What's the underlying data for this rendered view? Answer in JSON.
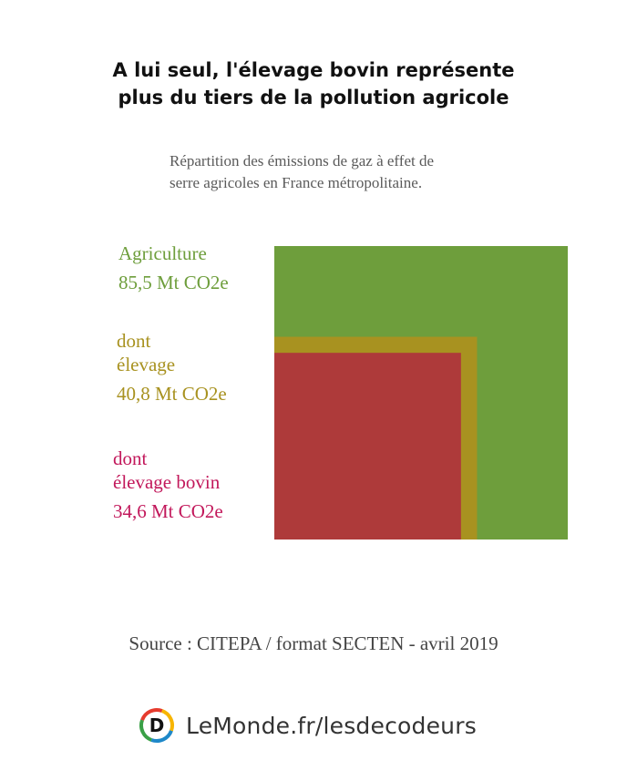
{
  "title": {
    "line1": "A lui seul, l'élevage bovin représente",
    "line2": "plus du tiers de la pollution agricole"
  },
  "subtitle": {
    "line1": "Répartition des émissions de gaz à effet de",
    "line2": "serre agricoles en France métropolitaine."
  },
  "chart_data": {
    "type": "area",
    "unit": "Mt CO2e",
    "series": [
      {
        "name_line1": "Agriculture",
        "name_line2": "",
        "value": 85.5,
        "value_label": "85,5 Mt CO2e",
        "color": "#6e9e3c",
        "label_color": "#6e9e3c"
      },
      {
        "name_line1": "dont",
        "name_line2": "élevage",
        "value": 40.8,
        "value_label": "40,8 Mt CO2e",
        "color": "#a89220",
        "label_color": "#a89220"
      },
      {
        "name_line1": "dont",
        "name_line2": "élevage bovin",
        "value": 34.6,
        "value_label": "34,6 Mt CO2e",
        "color": "#ae3a3a",
        "label_color": "#c2185b"
      }
    ]
  },
  "source": "Source : CITEPA / format SECTEN - avril 2019",
  "brand": {
    "text": "LeMonde.fr/lesdecodeurs",
    "logo_letter": "D",
    "logo_colors": [
      "#e63b2e",
      "#f7b500",
      "#1e88c9",
      "#3aa047"
    ]
  }
}
